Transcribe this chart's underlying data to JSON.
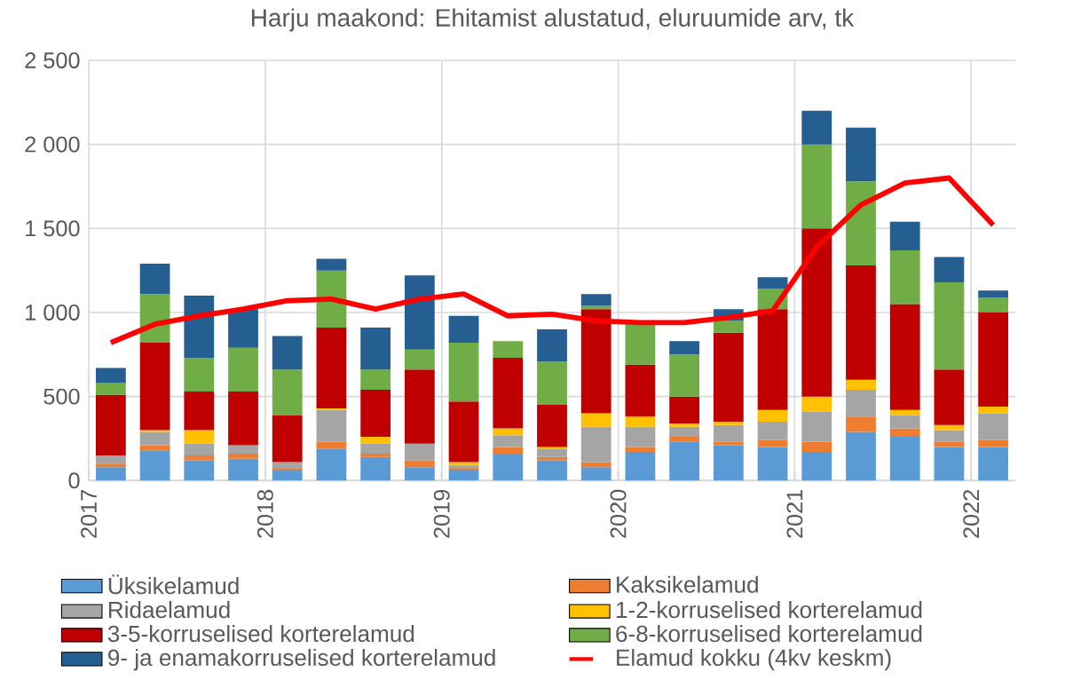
{
  "chart_data": {
    "type": "bar",
    "stacked": true,
    "title": "Harju maakond: Ehitamist alustatud, eluruumide arv, tk",
    "x": [
      2017.125,
      2017.375,
      2017.625,
      2017.875,
      2018.125,
      2018.375,
      2018.625,
      2018.875,
      2019.125,
      2019.375,
      2019.625,
      2019.875,
      2020.125,
      2020.375,
      2020.625,
      2020.875,
      2021.125,
      2021.375,
      2021.625,
      2021.875,
      2022.125
    ],
    "series": [
      {
        "name": "Üksikelamud",
        "color": "#5b9bd5",
        "values": [
          80,
          180,
          120,
          130,
          60,
          190,
          140,
          80,
          60,
          160,
          120,
          80,
          170,
          230,
          210,
          200,
          170,
          290,
          260,
          200,
          200
        ]
      },
      {
        "name": "Kaksikelamud",
        "color": "#ed7d31",
        "values": [
          20,
          30,
          30,
          30,
          10,
          40,
          20,
          40,
          10,
          40,
          20,
          30,
          30,
          30,
          20,
          40,
          60,
          90,
          50,
          30,
          40
        ]
      },
      {
        "name": "Ridaelamud",
        "color": "#a5a5a5",
        "values": [
          50,
          80,
          70,
          50,
          40,
          190,
          60,
          100,
          20,
          70,
          50,
          210,
          120,
          60,
          100,
          110,
          180,
          160,
          80,
          70,
          160
        ]
      },
      {
        "name": "1-2-korruselised korterelamud",
        "color": "#ffc000",
        "values": [
          0,
          10,
          80,
          0,
          0,
          10,
          40,
          0,
          20,
          40,
          10,
          80,
          60,
          20,
          20,
          70,
          90,
          60,
          30,
          30,
          40
        ]
      },
      {
        "name": "3-5-korruselised korterelamud",
        "color": "#c00000",
        "values": [
          360,
          520,
          230,
          320,
          280,
          480,
          280,
          440,
          360,
          420,
          250,
          620,
          310,
          160,
          530,
          600,
          1000,
          680,
          630,
          330,
          560
        ]
      },
      {
        "name": "6-8-korruselised korterelamud",
        "color": "#70ad47",
        "values": [
          70,
          290,
          200,
          260,
          270,
          340,
          120,
          120,
          350,
          100,
          260,
          20,
          250,
          250,
          70,
          120,
          500,
          500,
          320,
          520,
          90
        ]
      },
      {
        "name": "9- ja enamakorruselised korterelamud",
        "color": "#255e91",
        "values": [
          90,
          180,
          370,
          230,
          200,
          70,
          250,
          440,
          160,
          0,
          190,
          70,
          0,
          80,
          70,
          70,
          200,
          320,
          170,
          150,
          40
        ]
      },
      {
        "name": "Elamud kokku (4kv keskm)",
        "type": "line",
        "color": "#ff0000",
        "values": [
          820,
          930,
          980,
          1020,
          1070,
          1080,
          1020,
          1080,
          1110,
          980,
          990,
          950,
          940,
          940,
          970,
          1010,
          1390,
          1640,
          1770,
          1800,
          1520
        ]
      }
    ],
    "xlim": [
      2017,
      2022.25
    ],
    "xticks": [
      2017,
      2018,
      2019,
      2020,
      2021,
      2022
    ],
    "ylim": [
      0,
      2500
    ],
    "yticks": [
      0,
      500,
      {
        "value": 1000,
        "label": "1 000"
      },
      {
        "value": 1500,
        "label": "1 500"
      },
      {
        "value": 2000,
        "label": "2 000"
      },
      {
        "value": 2500,
        "label": "2 500"
      }
    ],
    "grid": true,
    "legend": "bottom",
    "marker": "none"
  }
}
